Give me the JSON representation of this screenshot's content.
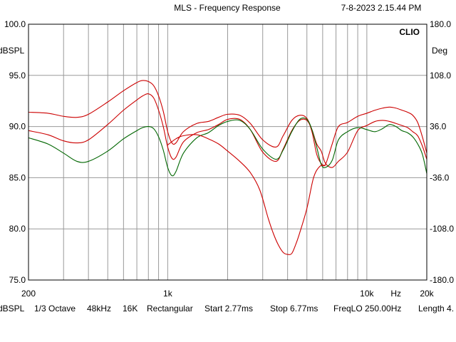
{
  "header": {
    "title": "MLS - Frequency Response",
    "timestamp": "7-8-2023 2.15.44 PM"
  },
  "brand": "CLIO",
  "footer": {
    "unit": "dBSPL",
    "smoothing": "1/3 Octave",
    "sample_rate": "48kHz",
    "fft_size": "16K",
    "window": "Rectangular",
    "start": "Start 2.77ms",
    "stop": "Stop 6.77ms",
    "freq_lo": "FreqLO 250.00Hz",
    "length": "Length 4."
  },
  "chart_data": {
    "type": "line",
    "xscale": "log",
    "xlim": [
      200,
      20000
    ],
    "x_tick_labels": [
      {
        "value": 200,
        "label": "200"
      },
      {
        "value": 1000,
        "label": "1k"
      },
      {
        "value": 10000,
        "label": "10k"
      },
      {
        "value": 14000,
        "label": "Hz"
      },
      {
        "value": 20000,
        "label": "20k"
      }
    ],
    "left_axis": {
      "label": "dBSPL",
      "ylim": [
        75,
        100
      ],
      "ticks": [
        {
          "value": 100,
          "label": "100.0"
        },
        {
          "value": 95,
          "label": "95.0"
        },
        {
          "value": 90,
          "label": "90.0"
        },
        {
          "value": 85,
          "label": "85.0"
        },
        {
          "value": 80,
          "label": "80.0"
        },
        {
          "value": 75,
          "label": "75.0"
        }
      ]
    },
    "right_axis": {
      "label": "Deg",
      "ylim": [
        -180,
        180
      ],
      "ticks": [
        {
          "value": 180,
          "label": "180.0"
        },
        {
          "value": 108,
          "label": "108.0"
        },
        {
          "value": 36,
          "label": "36.0"
        },
        {
          "value": -36,
          "label": "-36.0"
        },
        {
          "value": -108,
          "label": "-108.0"
        },
        {
          "value": -180,
          "label": "-180.0"
        }
      ]
    },
    "grid": true,
    "series": [
      {
        "color": "#cc0000",
        "x": [
          200,
          250,
          300,
          350,
          400,
          500,
          600,
          700,
          750,
          800,
          850,
          900,
          950,
          1000,
          1050,
          1100,
          1200,
          1400,
          1600,
          1800,
          2000,
          2300,
          2600,
          3000,
          3500,
          3800,
          4200,
          4600,
          5000,
          5300,
          5600,
          5900,
          6200,
          6700,
          7200,
          8000,
          9000,
          10000,
          11000,
          12000,
          13000,
          14000,
          15000,
          16000,
          17000,
          18000,
          19000,
          20000
        ],
        "values": [
          91.4,
          91.3,
          91.0,
          90.9,
          91.2,
          92.4,
          93.5,
          94.3,
          94.5,
          94.4,
          94.0,
          93.0,
          91.5,
          89.5,
          88.4,
          88.4,
          89.5,
          90.3,
          90.5,
          90.9,
          91.2,
          91.1,
          90.3,
          88.7,
          88.0,
          89.1,
          90.6,
          91.1,
          90.8,
          89.5,
          87.3,
          86.4,
          86.3,
          88.3,
          90.0,
          90.4,
          91.0,
          91.3,
          91.6,
          91.8,
          91.9,
          91.8,
          91.6,
          91.4,
          91.1,
          90.4,
          89.0,
          87.4
        ]
      },
      {
        "color": "#cc0000",
        "x": [
          200,
          250,
          300,
          350,
          400,
          500,
          600,
          700,
          750,
          800,
          850,
          900,
          950,
          1000,
          1050,
          1100,
          1200,
          1400,
          1600,
          1800,
          2000,
          2300,
          2600,
          3000,
          3500,
          3800,
          4200,
          4600,
          5000,
          5300,
          5600,
          5900,
          6200,
          6700,
          7200,
          8000,
          9000,
          10000,
          11000,
          12000,
          13000,
          14000,
          15000,
          16000,
          17000,
          18000,
          19000,
          20000
        ],
        "values": [
          89.6,
          89.2,
          88.6,
          88.4,
          88.7,
          90.2,
          91.6,
          92.6,
          93.0,
          93.2,
          92.8,
          91.6,
          90.0,
          88.0,
          86.9,
          87.0,
          88.5,
          89.4,
          89.7,
          90.2,
          90.7,
          90.7,
          89.7,
          87.5,
          86.6,
          87.8,
          89.6,
          90.6,
          90.6,
          89.7,
          88.3,
          87.6,
          86.4,
          86.0,
          86.6,
          87.5,
          89.6,
          90.1,
          90.5,
          90.6,
          90.5,
          90.3,
          90.1,
          89.9,
          89.5,
          89.1,
          88.1,
          86.8
        ]
      },
      {
        "color": "#006600",
        "x": [
          200,
          250,
          300,
          350,
          400,
          500,
          600,
          700,
          750,
          800,
          850,
          900,
          950,
          1000,
          1050,
          1100,
          1200,
          1400,
          1600,
          1800,
          2000,
          2300,
          2600,
          3000,
          3500,
          3800,
          4200,
          4600,
          5000,
          5300,
          5600,
          5900,
          6200,
          6700,
          7200,
          8000,
          9000,
          10000,
          11000,
          12000,
          13000,
          14000,
          15000,
          16000,
          17000,
          18000,
          19000,
          20000
        ],
        "values": [
          88.9,
          88.3,
          87.4,
          86.6,
          86.6,
          87.6,
          88.8,
          89.6,
          89.9,
          90.0,
          89.8,
          89.0,
          87.7,
          86.0,
          85.2,
          85.6,
          87.4,
          88.9,
          89.4,
          90.1,
          90.5,
          90.6,
          89.7,
          87.8,
          86.8,
          87.7,
          89.5,
          90.7,
          90.7,
          89.7,
          88.0,
          86.3,
          86.0,
          86.7,
          88.7,
          89.5,
          89.9,
          89.7,
          89.5,
          89.8,
          90.2,
          90.0,
          89.6,
          89.4,
          89.0,
          88.3,
          87.3,
          85.4
        ]
      },
      {
        "color": "#cc0000",
        "x": [
          1000,
          1100,
          1200,
          1400,
          1600,
          1800,
          2000,
          2300,
          2600,
          2900,
          3200,
          3400,
          3600,
          3800,
          4000,
          4200,
          4400,
          4600,
          5000,
          5400,
          5800,
          6200
        ],
        "values": [
          88.2,
          88.8,
          89.1,
          89.2,
          88.8,
          88.3,
          87.6,
          86.6,
          85.5,
          83.8,
          81.0,
          79.5,
          78.4,
          77.7,
          77.5,
          77.6,
          78.5,
          79.6,
          82.0,
          85.0,
          86.1,
          86.2
        ]
      }
    ]
  }
}
